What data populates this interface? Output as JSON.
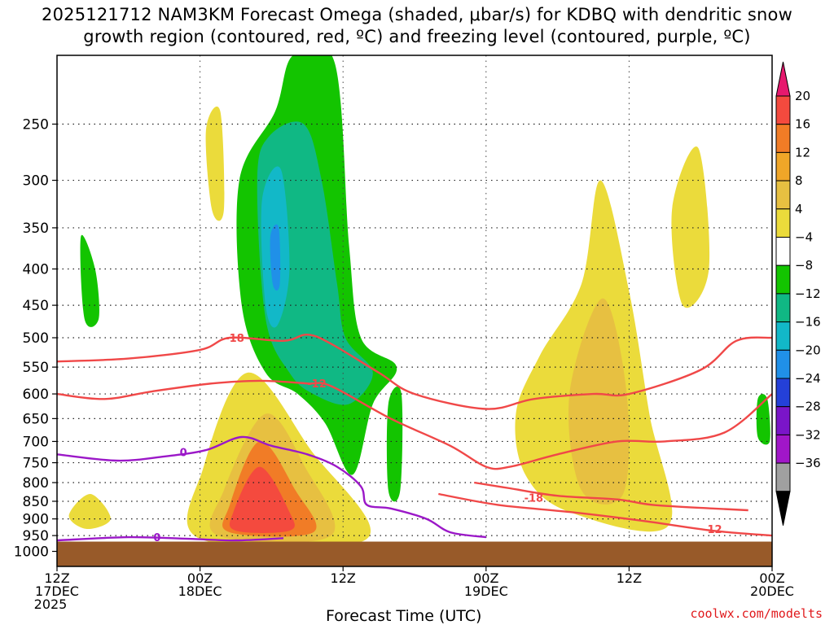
{
  "chart_data": {
    "type": "heatmap",
    "title_line1": "2025121712 NAM3KM Forecast Omega (shaded, μbar/s) for KDBQ with dendritic snow",
    "title_line2": "growth region (contoured, red, ºC) and freezing level (contoured, purple, ºC)",
    "xlabel": "Forecast Time (UTC)",
    "credit": "coolwx.com/modelts",
    "y_axis": {
      "scale": "log-pressure (hPa), inverted",
      "ylim": [
        1050,
        200
      ],
      "ticks": [
        "250",
        "300",
        "350",
        "400",
        "450",
        "500",
        "550",
        "600",
        "650",
        "700",
        "750",
        "800",
        "850",
        "900",
        "950",
        "1000"
      ]
    },
    "x_axis": {
      "range_hours": [
        0,
        60
      ],
      "ticks": [
        {
          "hour": 0,
          "line1": "12Z",
          "line2": "17DEC",
          "line3": "2025"
        },
        {
          "hour": 12,
          "line1": "00Z",
          "line2": "18DEC",
          "line3": ""
        },
        {
          "hour": 24,
          "line1": "12Z",
          "line2": "",
          "line3": ""
        },
        {
          "hour": 36,
          "line1": "00Z",
          "line2": "19DEC",
          "line3": ""
        },
        {
          "hour": 48,
          "line1": "12Z",
          "line2": "",
          "line3": ""
        },
        {
          "hour": 60,
          "line1": "00Z",
          "line2": "20DEC",
          "line3": ""
        }
      ]
    },
    "grid": "dotted",
    "colorbar": {
      "labels": [
        "20",
        "16",
        "12",
        "8",
        "4",
        "−4",
        "−8",
        "−12",
        "−16",
        "−20",
        "−24",
        "−28",
        "−32",
        "−36"
      ],
      "colors": [
        "#e6196e",
        "#f44a3e",
        "#f17c26",
        "#f0a628",
        "#e7c041",
        "#ebdb3b",
        "#ffffff",
        "#13c400",
        "#10b884",
        "#12b8c8",
        "#2090e8",
        "#2440d8",
        "#7a15c8",
        "#a116c8",
        "#a0a0a0",
        "#000000"
      ]
    },
    "shaded_regions": [
      {
        "level": 4,
        "color": "#ebdb3b",
        "points": [
          [
            12.3,
            760
          ],
          [
            16,
            560
          ],
          [
            21.3,
            720
          ],
          [
            26,
            960
          ],
          [
            12,
            960
          ]
        ]
      },
      {
        "level": 8,
        "color": "#e7c041",
        "points": [
          [
            14,
            820
          ],
          [
            17.5,
            640
          ],
          [
            20.8,
            760
          ],
          [
            23,
            950
          ],
          [
            13.5,
            950
          ]
        ]
      },
      {
        "level": 12,
        "color": "#f17c26",
        "points": [
          [
            14.5,
            860
          ],
          [
            17,
            700
          ],
          [
            20,
            820
          ],
          [
            21.5,
            940
          ],
          [
            14.5,
            940
          ]
        ]
      },
      {
        "level": 16,
        "color": "#f44a3e",
        "points": [
          [
            14.8,
            880
          ],
          [
            17,
            760
          ],
          [
            19.5,
            880
          ],
          [
            19.5,
            935
          ],
          [
            15,
            935
          ]
        ]
      },
      {
        "level": 4,
        "color": "#ebdb3b",
        "points": [
          [
            38.5,
            640
          ],
          [
            40.5,
            530
          ],
          [
            44,
            420
          ],
          [
            45.6,
            300
          ],
          [
            48,
            430
          ],
          [
            49.7,
            640
          ],
          [
            51.3,
            920
          ],
          [
            43,
            880
          ],
          [
            39.3,
            780
          ]
        ]
      },
      {
        "level": 8,
        "color": "#e7c041",
        "points": [
          [
            43,
            600
          ],
          [
            45.8,
            440
          ],
          [
            47.8,
            600
          ],
          [
            47.5,
            830
          ],
          [
            44,
            820
          ]
        ]
      },
      {
        "level": 4,
        "color": "#ebdb3b",
        "points": [
          [
            51.6,
            330
          ],
          [
            53.8,
            270
          ],
          [
            54.7,
            400
          ],
          [
            52.5,
            450
          ]
        ]
      },
      {
        "level": 4,
        "color": "#ebdb3b",
        "points": [
          [
            1,
            890
          ],
          [
            2.8,
            830
          ],
          [
            4.5,
            900
          ],
          [
            2.5,
            930
          ]
        ]
      },
      {
        "level": 4,
        "color": "#ebdb3b",
        "points": [
          [
            12.5,
            255
          ],
          [
            13.7,
            240
          ],
          [
            14,
            330
          ],
          [
            13,
            330
          ]
        ]
      },
      {
        "level": -4,
        "color": "#13c400",
        "points": [
          [
            15.3,
            300
          ],
          [
            18.3,
            240
          ],
          [
            19.8,
            200
          ],
          [
            23.3,
            205
          ],
          [
            24.5,
            370
          ],
          [
            25.5,
            500
          ],
          [
            28.5,
            550
          ],
          [
            26.5,
            620
          ],
          [
            24.8,
            780
          ],
          [
            22.5,
            660
          ],
          [
            20.2,
            600
          ],
          [
            17.5,
            560
          ],
          [
            15.5,
            450
          ]
        ]
      },
      {
        "level": -8,
        "color": "#10b884",
        "points": [
          [
            16.8,
            300
          ],
          [
            17.8,
            260
          ],
          [
            20.7,
            250
          ],
          [
            22.2,
            300
          ],
          [
            23.5,
            420
          ],
          [
            24.2,
            500
          ],
          [
            26.5,
            560
          ],
          [
            24.5,
            620
          ],
          [
            21.5,
            600
          ],
          [
            19.5,
            560
          ],
          [
            17.5,
            470
          ]
        ]
      },
      {
        "level": -12,
        "color": "#12b8c8",
        "points": [
          [
            17.2,
            320
          ],
          [
            18.8,
            290
          ],
          [
            19.5,
            400
          ],
          [
            18.5,
            480
          ],
          [
            17.5,
            450
          ]
        ]
      },
      {
        "level": -16,
        "color": "#2090e8",
        "points": [
          [
            17.9,
            360
          ],
          [
            18.6,
            350
          ],
          [
            18.7,
            420
          ],
          [
            18.1,
            420
          ]
        ]
      },
      {
        "level": -4,
        "color": "#13c400",
        "points": [
          [
            2,
            360
          ],
          [
            3.2,
            400
          ],
          [
            3.5,
            470
          ],
          [
            2.3,
            470
          ]
        ]
      },
      {
        "level": -4,
        "color": "#13c400",
        "points": [
          [
            27.8,
            620
          ],
          [
            28.9,
            600
          ],
          [
            28.8,
            820
          ],
          [
            27.8,
            820
          ]
        ]
      },
      {
        "level": -4,
        "color": "#13c400",
        "points": [
          [
            58.8,
            610
          ],
          [
            59.6,
            610
          ],
          [
            59.8,
            700
          ],
          [
            58.8,
            690
          ]
        ]
      }
    ],
    "contour_lines": [
      {
        "kind": "dendritic",
        "color": "#f04848",
        "label": "-18",
        "label_at": [
          14.9,
          500
        ],
        "points": [
          [
            0,
            540
          ],
          [
            6,
            535
          ],
          [
            12,
            520
          ],
          [
            14.5,
            500
          ],
          [
            19,
            505
          ],
          [
            21,
            495
          ],
          [
            23,
            510
          ],
          [
            27,
            560
          ],
          [
            30,
            600
          ],
          [
            36,
            630
          ],
          [
            40,
            610
          ],
          [
            45,
            600
          ],
          [
            48,
            600
          ],
          [
            54,
            555
          ],
          [
            57,
            505
          ],
          [
            60,
            500
          ]
        ]
      },
      {
        "kind": "dendritic",
        "color": "#f04848",
        "label": "-12",
        "label_at": [
          21.8,
          580
        ],
        "points": [
          [
            0,
            600
          ],
          [
            4,
            610
          ],
          [
            8,
            595
          ],
          [
            13,
            580
          ],
          [
            17,
            575
          ],
          [
            21,
            580
          ],
          [
            23,
            585
          ],
          [
            28,
            650
          ],
          [
            33,
            710
          ],
          [
            36,
            760
          ],
          [
            38,
            760
          ],
          [
            42,
            730
          ],
          [
            47,
            700
          ],
          [
            51,
            700
          ],
          [
            56,
            680
          ],
          [
            60,
            600
          ]
        ]
      },
      {
        "kind": "dendritic",
        "color": "#f04848",
        "label": "-18",
        "label_at": [
          40,
          840
        ],
        "points": [
          [
            35,
            800
          ],
          [
            38,
            815
          ],
          [
            42,
            835
          ],
          [
            47,
            845
          ],
          [
            50,
            860
          ],
          [
            55,
            870
          ],
          [
            58,
            875
          ]
        ]
      },
      {
        "kind": "dendritic",
        "color": "#f04848",
        "label": "-12",
        "label_at": [
          55,
          930
        ],
        "points": [
          [
            32,
            830
          ],
          [
            37,
            860
          ],
          [
            43,
            880
          ],
          [
            49,
            905
          ],
          [
            55,
            935
          ],
          [
            60,
            950
          ]
        ]
      },
      {
        "kind": "freezing",
        "color": "#9b18c8",
        "label": "0",
        "label_at": [
          10.6,
          725
        ],
        "points": [
          [
            0,
            730
          ],
          [
            5,
            745
          ],
          [
            9,
            735
          ],
          [
            12.5,
            720
          ],
          [
            15.5,
            690
          ],
          [
            18,
            710
          ],
          [
            21,
            730
          ],
          [
            23.5,
            760
          ],
          [
            25.5,
            810
          ],
          [
            26,
            860
          ],
          [
            28,
            870
          ],
          [
            31,
            900
          ],
          [
            33,
            940
          ],
          [
            36,
            955
          ]
        ]
      },
      {
        "kind": "freezing",
        "color": "#9b18c8",
        "label": "0",
        "label_at": [
          8.4,
          955
        ],
        "points": [
          [
            0,
            965
          ],
          [
            6,
            955
          ],
          [
            11,
            960
          ],
          [
            15,
            965
          ],
          [
            19,
            958
          ]
        ]
      }
    ]
  }
}
